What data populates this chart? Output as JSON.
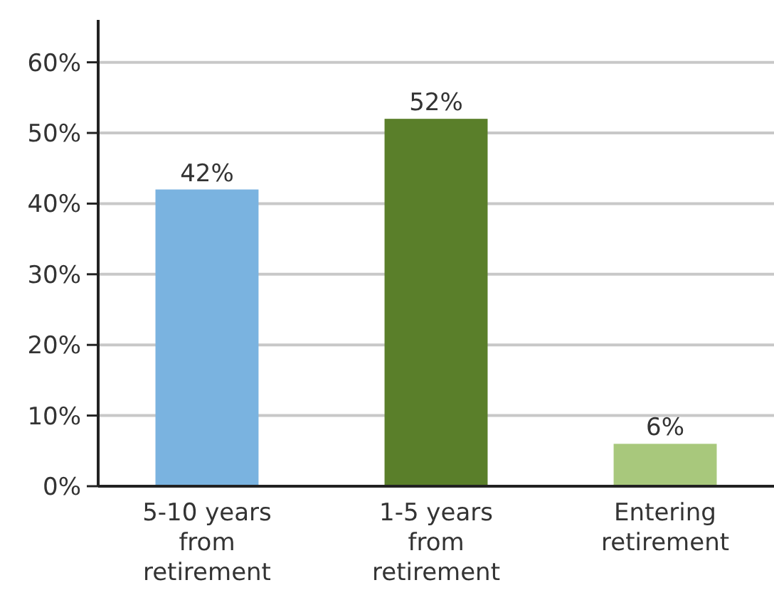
{
  "chart_data": {
    "type": "bar",
    "categories": [
      "5-10 years from retirement",
      "1-5 years from retirement",
      "Entering retirement"
    ],
    "values": [
      42,
      52,
      6
    ],
    "colors": [
      "#7ab3e0",
      "#5a7f2a",
      "#a8c87c"
    ],
    "ylim": [
      0,
      66
    ],
    "yticks": [
      {
        "value": 0,
        "label": "0%"
      },
      {
        "value": 10,
        "label": "10%"
      },
      {
        "value": 20,
        "label": "20%"
      },
      {
        "value": 30,
        "label": "30%"
      },
      {
        "value": 40,
        "label": "40%"
      },
      {
        "value": 50,
        "label": "50%"
      },
      {
        "value": 60,
        "label": "60%"
      }
    ],
    "value_labels": [
      "42%",
      "52%",
      "6%"
    ],
    "grid": "y"
  }
}
